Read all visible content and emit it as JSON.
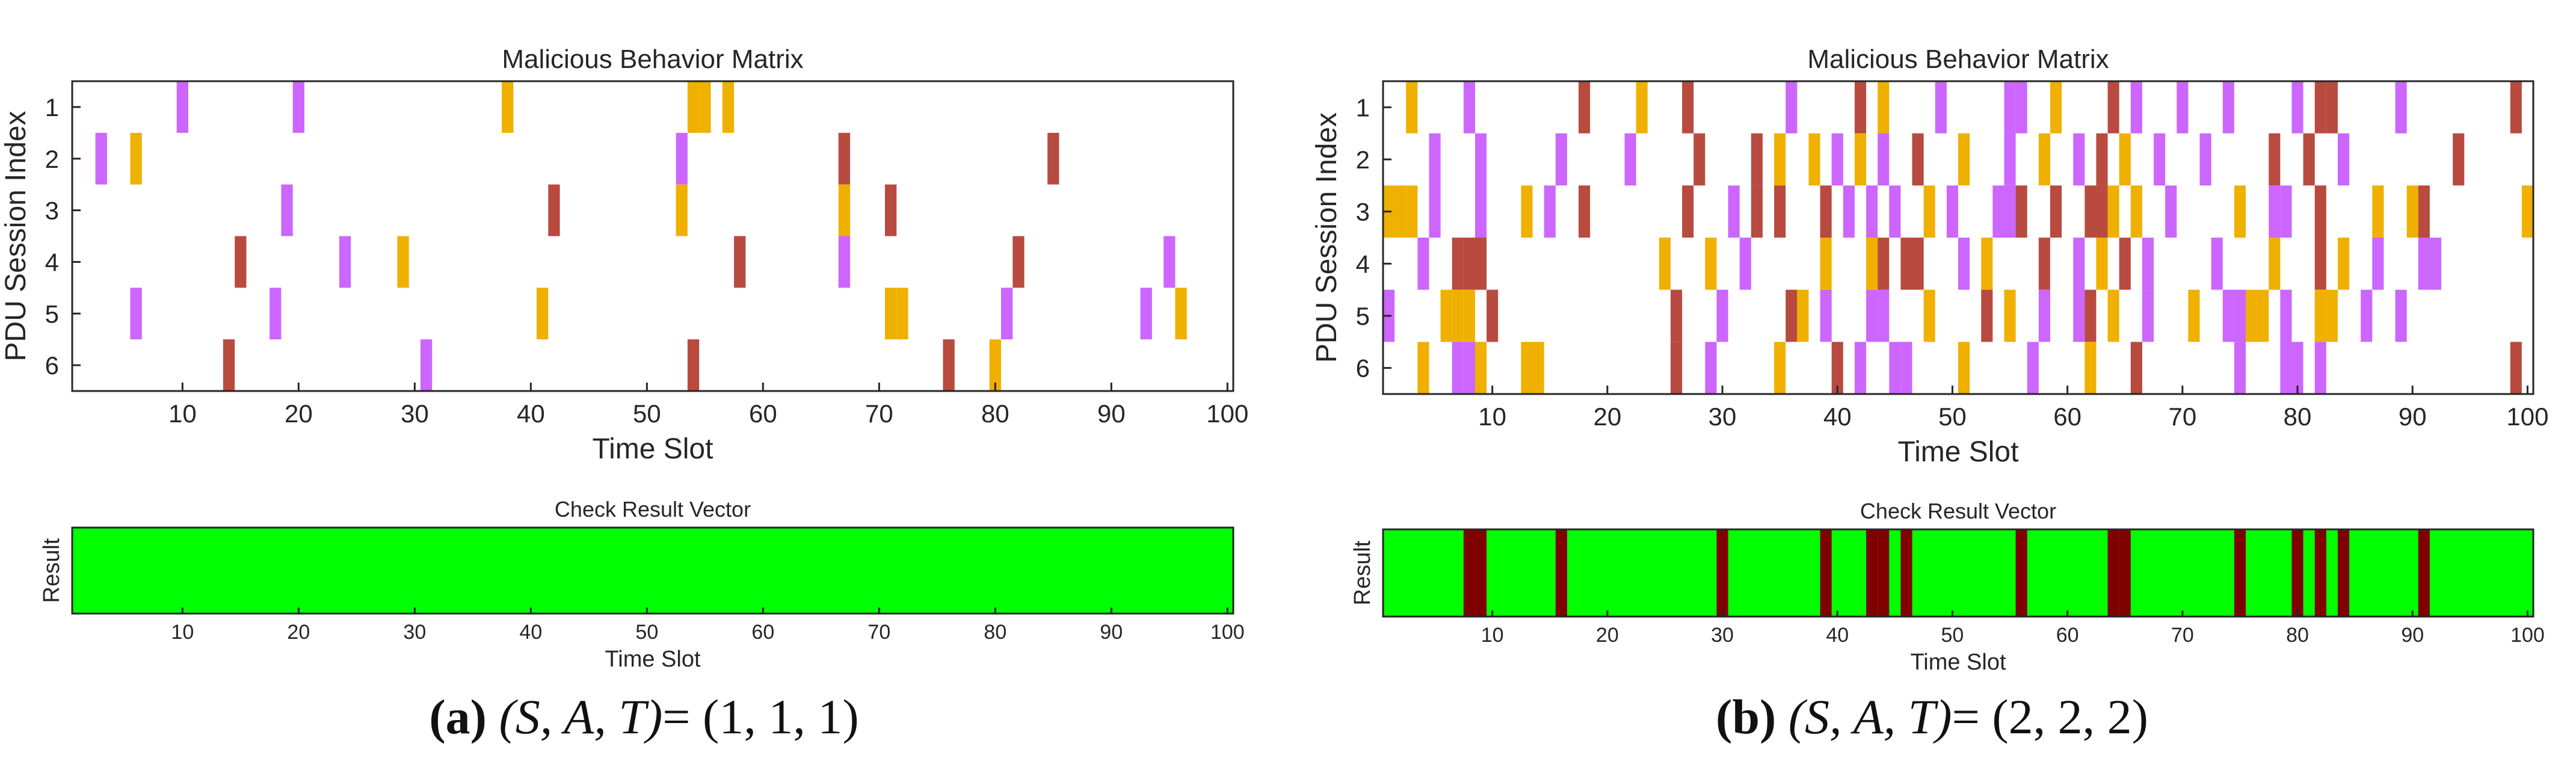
{
  "colors": {
    "attack_a": "#cc66ff",
    "attack_b": "#f0b000",
    "attack_c": "#b84a40",
    "check_ok": "#00ff00",
    "check_fail": "#800000"
  },
  "chart_data": [
    {
      "panel": "a",
      "type": "heatmap",
      "title": "Malicious Behavior Matrix",
      "xlabel": "Time Slot",
      "ylabel": "PDU Session Index",
      "xlim": [
        0.5,
        100.5
      ],
      "rows": [
        1,
        2,
        3,
        4,
        5,
        6
      ],
      "x_ticks": [
        10,
        20,
        30,
        40,
        50,
        60,
        70,
        80,
        90,
        100
      ],
      "cells": [
        [
          1,
          10,
          "a"
        ],
        [
          1,
          20,
          "a"
        ],
        [
          1,
          38,
          "b"
        ],
        [
          1,
          54,
          "b"
        ],
        [
          1,
          55,
          "b"
        ],
        [
          1,
          57,
          "b"
        ],
        [
          2,
          3,
          "a"
        ],
        [
          2,
          6,
          "b"
        ],
        [
          2,
          53,
          "a"
        ],
        [
          2,
          67,
          "c"
        ],
        [
          2,
          85,
          "c"
        ],
        [
          3,
          19,
          "a"
        ],
        [
          3,
          42,
          "c"
        ],
        [
          3,
          53,
          "b"
        ],
        [
          3,
          67,
          "b"
        ],
        [
          3,
          71,
          "c"
        ],
        [
          4,
          15,
          "c"
        ],
        [
          4,
          24,
          "a"
        ],
        [
          4,
          29,
          "b"
        ],
        [
          4,
          58,
          "c"
        ],
        [
          4,
          67,
          "a"
        ],
        [
          4,
          82,
          "c"
        ],
        [
          4,
          95,
          "a"
        ],
        [
          5,
          6,
          "a"
        ],
        [
          5,
          18,
          "a"
        ],
        [
          5,
          41,
          "b"
        ],
        [
          5,
          71,
          "b"
        ],
        [
          5,
          72,
          "b"
        ],
        [
          5,
          81,
          "a"
        ],
        [
          5,
          93,
          "a"
        ],
        [
          5,
          96,
          "b"
        ],
        [
          6,
          14,
          "c"
        ],
        [
          6,
          31,
          "a"
        ],
        [
          6,
          54,
          "c"
        ],
        [
          6,
          76,
          "c"
        ],
        [
          6,
          80,
          "b"
        ]
      ]
    },
    {
      "panel": "a",
      "type": "heatmap",
      "title": "Check Result Vector",
      "xlabel": "Time Slot",
      "ylabel": "Result",
      "xlim": [
        0.5,
        100.5
      ],
      "x_ticks": [
        10,
        20,
        30,
        40,
        50,
        60,
        70,
        80,
        90,
        100
      ],
      "failed_slots": []
    },
    {
      "panel": "b",
      "type": "heatmap",
      "title": "Malicious Behavior Matrix",
      "xlabel": "Time Slot",
      "ylabel": "PDU Session Index",
      "xlim": [
        0.5,
        100.5
      ],
      "rows": [
        1,
        2,
        3,
        4,
        5,
        6
      ],
      "x_ticks": [
        10,
        20,
        30,
        40,
        50,
        60,
        70,
        80,
        90,
        100
      ],
      "cells": [
        [
          1,
          3,
          "b"
        ],
        [
          1,
          8,
          "a"
        ],
        [
          1,
          18,
          "c"
        ],
        [
          1,
          23,
          "b"
        ],
        [
          1,
          27,
          "c"
        ],
        [
          1,
          36,
          "a"
        ],
        [
          1,
          42,
          "c"
        ],
        [
          1,
          44,
          "b"
        ],
        [
          1,
          49,
          "a"
        ],
        [
          1,
          55,
          "a"
        ],
        [
          1,
          56,
          "a"
        ],
        [
          1,
          59,
          "b"
        ],
        [
          1,
          64,
          "c"
        ],
        [
          1,
          66,
          "a"
        ],
        [
          1,
          70,
          "a"
        ],
        [
          1,
          74,
          "a"
        ],
        [
          1,
          80,
          "a"
        ],
        [
          1,
          82,
          "c"
        ],
        [
          1,
          83,
          "c"
        ],
        [
          1,
          89,
          "a"
        ],
        [
          1,
          99,
          "c"
        ],
        [
          2,
          5,
          "a"
        ],
        [
          2,
          9,
          "a"
        ],
        [
          2,
          16,
          "a"
        ],
        [
          2,
          22,
          "a"
        ],
        [
          2,
          28,
          "c"
        ],
        [
          2,
          33,
          "c"
        ],
        [
          2,
          35,
          "b"
        ],
        [
          2,
          38,
          "b"
        ],
        [
          2,
          40,
          "a"
        ],
        [
          2,
          42,
          "b"
        ],
        [
          2,
          44,
          "a"
        ],
        [
          2,
          47,
          "c"
        ],
        [
          2,
          51,
          "b"
        ],
        [
          2,
          55,
          "a"
        ],
        [
          2,
          58,
          "b"
        ],
        [
          2,
          61,
          "a"
        ],
        [
          2,
          63,
          "c"
        ],
        [
          2,
          65,
          "b"
        ],
        [
          2,
          68,
          "a"
        ],
        [
          2,
          72,
          "a"
        ],
        [
          2,
          78,
          "c"
        ],
        [
          2,
          81,
          "c"
        ],
        [
          2,
          84,
          "a"
        ],
        [
          2,
          94,
          "c"
        ],
        [
          3,
          1,
          "b"
        ],
        [
          3,
          2,
          "b"
        ],
        [
          3,
          3,
          "b"
        ],
        [
          3,
          5,
          "a"
        ],
        [
          3,
          9,
          "a"
        ],
        [
          3,
          13,
          "b"
        ],
        [
          3,
          15,
          "a"
        ],
        [
          3,
          18,
          "c"
        ],
        [
          3,
          27,
          "c"
        ],
        [
          3,
          31,
          "a"
        ],
        [
          3,
          33,
          "c"
        ],
        [
          3,
          35,
          "c"
        ],
        [
          3,
          39,
          "c"
        ],
        [
          3,
          41,
          "a"
        ],
        [
          3,
          43,
          "a"
        ],
        [
          3,
          45,
          "a"
        ],
        [
          3,
          48,
          "b"
        ],
        [
          3,
          50,
          "a"
        ],
        [
          3,
          54,
          "a"
        ],
        [
          3,
          55,
          "a"
        ],
        [
          3,
          56,
          "c"
        ],
        [
          3,
          59,
          "c"
        ],
        [
          3,
          62,
          "c"
        ],
        [
          3,
          63,
          "c"
        ],
        [
          3,
          64,
          "b"
        ],
        [
          3,
          66,
          "b"
        ],
        [
          3,
          69,
          "a"
        ],
        [
          3,
          75,
          "b"
        ],
        [
          3,
          78,
          "a"
        ],
        [
          3,
          79,
          "a"
        ],
        [
          3,
          82,
          "c"
        ],
        [
          3,
          87,
          "b"
        ],
        [
          3,
          90,
          "b"
        ],
        [
          3,
          91,
          "c"
        ],
        [
          3,
          100,
          "b"
        ],
        [
          4,
          4,
          "a"
        ],
        [
          4,
          7,
          "c"
        ],
        [
          4,
          8,
          "c"
        ],
        [
          4,
          9,
          "c"
        ],
        [
          4,
          25,
          "b"
        ],
        [
          4,
          29,
          "b"
        ],
        [
          4,
          32,
          "a"
        ],
        [
          4,
          39,
          "b"
        ],
        [
          4,
          43,
          "b"
        ],
        [
          4,
          44,
          "c"
        ],
        [
          4,
          46,
          "c"
        ],
        [
          4,
          47,
          "c"
        ],
        [
          4,
          51,
          "a"
        ],
        [
          4,
          53,
          "b"
        ],
        [
          4,
          58,
          "c"
        ],
        [
          4,
          61,
          "a"
        ],
        [
          4,
          63,
          "b"
        ],
        [
          4,
          65,
          "c"
        ],
        [
          4,
          67,
          "a"
        ],
        [
          4,
          73,
          "a"
        ],
        [
          4,
          78,
          "b"
        ],
        [
          4,
          82,
          "c"
        ],
        [
          4,
          84,
          "b"
        ],
        [
          4,
          87,
          "a"
        ],
        [
          4,
          91,
          "a"
        ],
        [
          4,
          92,
          "a"
        ],
        [
          5,
          1,
          "a"
        ],
        [
          5,
          6,
          "b"
        ],
        [
          5,
          7,
          "b"
        ],
        [
          5,
          8,
          "b"
        ],
        [
          5,
          10,
          "c"
        ],
        [
          5,
          26,
          "c"
        ],
        [
          5,
          30,
          "a"
        ],
        [
          5,
          36,
          "c"
        ],
        [
          5,
          37,
          "b"
        ],
        [
          5,
          39,
          "a"
        ],
        [
          5,
          43,
          "a"
        ],
        [
          5,
          44,
          "a"
        ],
        [
          5,
          48,
          "b"
        ],
        [
          5,
          53,
          "c"
        ],
        [
          5,
          55,
          "b"
        ],
        [
          5,
          58,
          "a"
        ],
        [
          5,
          61,
          "a"
        ],
        [
          5,
          62,
          "c"
        ],
        [
          5,
          64,
          "b"
        ],
        [
          5,
          67,
          "a"
        ],
        [
          5,
          71,
          "b"
        ],
        [
          5,
          74,
          "a"
        ],
        [
          5,
          75,
          "a"
        ],
        [
          5,
          76,
          "b"
        ],
        [
          5,
          77,
          "b"
        ],
        [
          5,
          79,
          "a"
        ],
        [
          5,
          82,
          "b"
        ],
        [
          5,
          83,
          "b"
        ],
        [
          5,
          86,
          "a"
        ],
        [
          5,
          89,
          "a"
        ],
        [
          6,
          4,
          "b"
        ],
        [
          6,
          7,
          "a"
        ],
        [
          6,
          8,
          "a"
        ],
        [
          6,
          9,
          "b"
        ],
        [
          6,
          13,
          "b"
        ],
        [
          6,
          14,
          "b"
        ],
        [
          6,
          26,
          "c"
        ],
        [
          6,
          29,
          "a"
        ],
        [
          6,
          35,
          "b"
        ],
        [
          6,
          40,
          "c"
        ],
        [
          6,
          42,
          "a"
        ],
        [
          6,
          45,
          "a"
        ],
        [
          6,
          46,
          "a"
        ],
        [
          6,
          51,
          "b"
        ],
        [
          6,
          57,
          "a"
        ],
        [
          6,
          62,
          "b"
        ],
        [
          6,
          66,
          "c"
        ],
        [
          6,
          75,
          "a"
        ],
        [
          6,
          79,
          "a"
        ],
        [
          6,
          80,
          "a"
        ],
        [
          6,
          82,
          "a"
        ],
        [
          6,
          99,
          "c"
        ]
      ]
    },
    {
      "panel": "b",
      "type": "heatmap",
      "title": "Check Result Vector",
      "xlabel": "Time Slot",
      "ylabel": "Result",
      "xlim": [
        0.5,
        100.5
      ],
      "x_ticks": [
        10,
        20,
        30,
        40,
        50,
        60,
        70,
        80,
        90,
        100
      ],
      "failed_slots": [
        8,
        9,
        16,
        30,
        39,
        43,
        44,
        46,
        56,
        64,
        65,
        75,
        80,
        82,
        84,
        91
      ]
    }
  ],
  "captions": [
    {
      "tag": "(a)",
      "vars": "(S, A, T)",
      "eq": "=",
      "value": "(1, 1, 1)"
    },
    {
      "tag": "(b)",
      "vars": "(S, A, T)",
      "eq": "=",
      "value": "(2, 2, 2)"
    }
  ]
}
